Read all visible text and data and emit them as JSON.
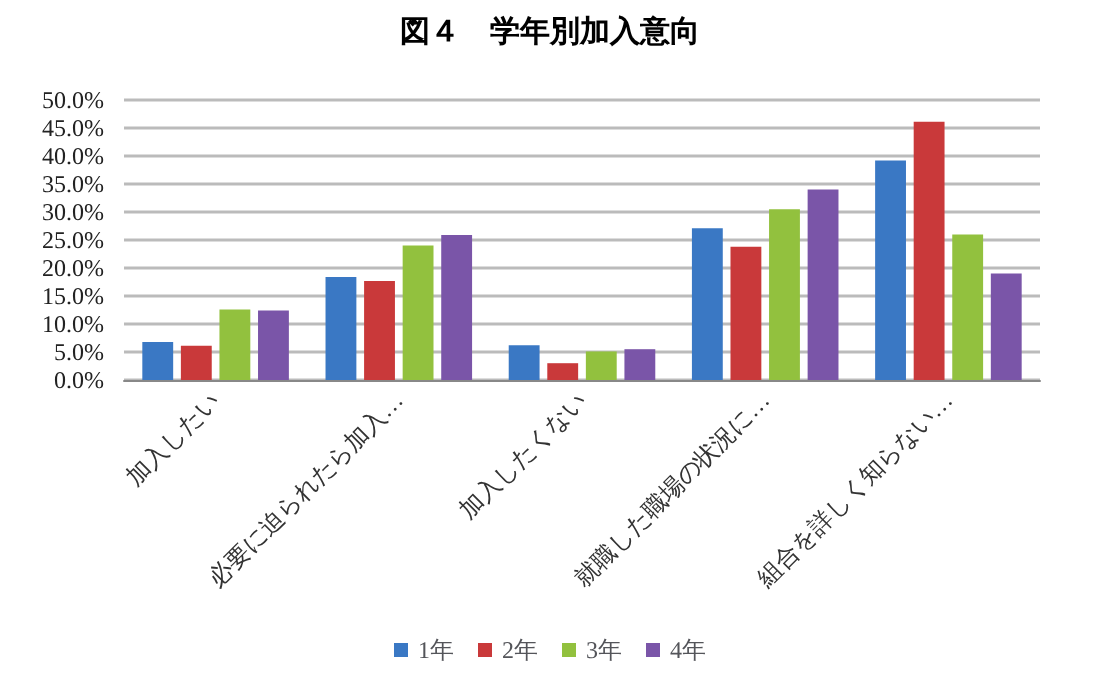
{
  "chart_data": {
    "type": "bar",
    "title": "図４　学年別加入意向",
    "categories": [
      "加入したい",
      "必要に迫られたら加入…",
      "加入したくない",
      "就職した職場の状況に…",
      "組合を詳しく知らない…"
    ],
    "series": [
      {
        "name": "1年",
        "color": "#3a78c4",
        "values": [
          6.8,
          18.4,
          6.2,
          27.1,
          39.2
        ]
      },
      {
        "name": "2年",
        "color": "#c9393a",
        "values": [
          6.1,
          17.7,
          3.0,
          23.8,
          46.1
        ]
      },
      {
        "name": "3年",
        "color": "#92c13e",
        "values": [
          12.6,
          24.0,
          5.1,
          30.5,
          26.0
        ]
      },
      {
        "name": "4年",
        "color": "#7a55a8",
        "values": [
          12.4,
          25.9,
          5.5,
          34.0,
          19.0
        ]
      }
    ],
    "ylim": [
      0,
      50
    ],
    "yticks": [
      {
        "value": 0,
        "label": "0.0%"
      },
      {
        "value": 5,
        "label": "5.0%"
      },
      {
        "value": 10,
        "label": "10.0%"
      },
      {
        "value": 15,
        "label": "15.0%"
      },
      {
        "value": 20,
        "label": "20.0%"
      },
      {
        "value": 25,
        "label": "25.0%"
      },
      {
        "value": 30,
        "label": "30.0%"
      },
      {
        "value": 35,
        "label": "35.0%"
      },
      {
        "value": 40,
        "label": "40.0%"
      },
      {
        "value": 45,
        "label": "45.0%"
      },
      {
        "value": 50,
        "label": "50.0%"
      }
    ],
    "grid": "y",
    "legend": "bottom"
  }
}
